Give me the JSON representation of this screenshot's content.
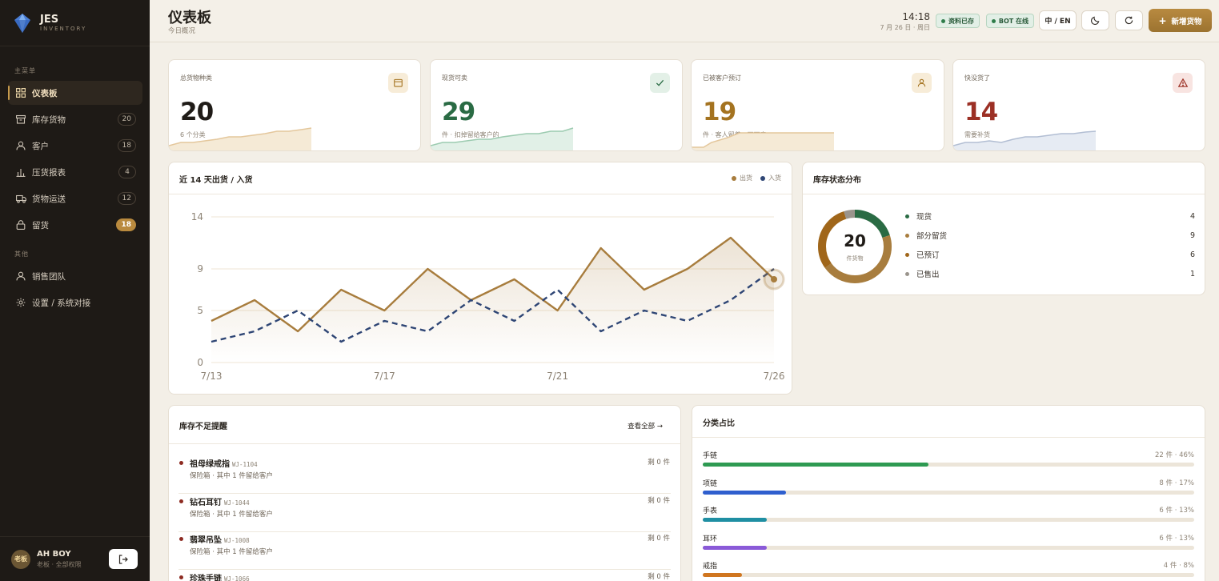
{
  "brand": {
    "name": "JES",
    "sub": "INVENTORY"
  },
  "sidebar": {
    "main_label": "主菜单",
    "other_label": "其他",
    "items": [
      {
        "label": "仪表板",
        "icon": "grid-icon",
        "badge": ""
      },
      {
        "label": "库存货物",
        "icon": "box-icon",
        "badge": "20"
      },
      {
        "label": "客户",
        "icon": "user-icon",
        "badge": "18"
      },
      {
        "label": "压货报表",
        "icon": "bar-chart-icon",
        "badge": "4"
      },
      {
        "label": "货物运送",
        "icon": "truck-icon",
        "badge": "12"
      },
      {
        "label": "留货",
        "icon": "lock-icon",
        "badge": "18"
      }
    ],
    "other_items": [
      {
        "label": "销售团队",
        "icon": "user-icon"
      },
      {
        "label": "设置 / 系统对接",
        "icon": "gear-icon"
      }
    ]
  },
  "user": {
    "avatar": "老板",
    "name": "AH BOY",
    "role": "老板 · 全部权限"
  },
  "header": {
    "title": "仪表板",
    "subtitle": "今日概况",
    "time": "14:18",
    "date": "7 月 26 日 · 周日",
    "status_saved": "资料已存",
    "status_bot": "BOT 在线",
    "lang": "中 / EN",
    "add_label": "新增货物"
  },
  "stats": [
    {
      "label": "总货物种类",
      "value": "20",
      "note": "6 个分类",
      "color": "#1f1b17",
      "icon": "box-icon",
      "icon_bg": "#f7ecd8",
      "spark": "#e4c79c"
    },
    {
      "label": "现货可卖",
      "value": "29",
      "note": "件 · 扣掉留给客户的",
      "color": "#2a6b44",
      "icon": "check-icon",
      "icon_bg": "#e3f0e7",
      "spark": "#9ccbb0"
    },
    {
      "label": "已被客户预订",
      "value": "19",
      "note": "件 · 客人留着，不可卖",
      "color": "#a47320",
      "icon": "user-icon",
      "icon_bg": "#f7ecd8",
      "spark": "#e4c79c"
    },
    {
      "label": "快没货了",
      "value": "14",
      "note": "需要补货",
      "color": "#9c3025",
      "icon": "warning-icon",
      "icon_bg": "#f8e4e1",
      "spark": "#b2bed3"
    }
  ],
  "flow_card": {
    "title": "近 14 天出货 / 入货",
    "legend_out": "出货",
    "legend_in": "入货"
  },
  "chart_data": {
    "type": "line",
    "title": "近 14 天出货 / 入货",
    "x": [
      "7/13",
      "7/14",
      "7/15",
      "7/16",
      "7/17",
      "7/18",
      "7/19",
      "7/20",
      "7/21",
      "7/22",
      "7/23",
      "7/24",
      "7/25",
      "7/26"
    ],
    "x_tick_labels": [
      "7/13",
      "7/17",
      "7/21",
      "7/26"
    ],
    "y_ticks": [
      0,
      5,
      9,
      14
    ],
    "ylim": [
      0,
      14
    ],
    "grid": true,
    "legend": "top-right",
    "series": [
      {
        "name": "出货",
        "color": "#a87d3e",
        "style": "solid",
        "values": [
          4,
          6,
          3,
          7,
          5,
          9,
          6,
          8,
          5,
          11,
          7,
          9,
          12,
          8
        ]
      },
      {
        "name": "入货",
        "color": "#2f4675",
        "style": "dashed",
        "values": [
          2,
          3,
          5,
          2,
          4,
          3,
          6,
          4,
          7,
          3,
          5,
          4,
          6,
          9
        ]
      }
    ]
  },
  "distribution": {
    "title": "库存状态分布",
    "total": "20",
    "unit": "件货物",
    "items": [
      {
        "label": "现货",
        "count": 4,
        "color": "#2a6b44"
      },
      {
        "label": "部分留货",
        "count": 9,
        "color": "#a87d3e"
      },
      {
        "label": "已预订",
        "count": 6,
        "color": "#a0661a"
      },
      {
        "label": "已售出",
        "count": 1,
        "color": "#9a948c"
      }
    ]
  },
  "low_stock": {
    "title": "库存不足提醒",
    "view_all": "查看全部 →",
    "items": [
      {
        "name": "祖母绿戒指",
        "code": "WJ-1104",
        "desc": "保险箱 · 其中 1 件留给客户",
        "remain": "剩 0 件"
      },
      {
        "name": "钻石耳钉",
        "code": "WJ-1044",
        "desc": "保险箱 · 其中 1 件留给客户",
        "remain": "剩 0 件"
      },
      {
        "name": "翡翠吊坠",
        "code": "WJ-1008",
        "desc": "保险箱 · 其中 1 件留给客户",
        "remain": "剩 0 件"
      },
      {
        "name": "珍珠手链",
        "code": "WJ-1066",
        "desc": "",
        "remain": "剩 0 件"
      }
    ]
  },
  "categories": {
    "title": "分类占比",
    "items": [
      {
        "name": "手链",
        "value": "22 件 · 46%",
        "percent": 46,
        "color": "#2e9a52"
      },
      {
        "name": "项链",
        "value": "8 件 · 17%",
        "percent": 17,
        "color": "#2f5fce"
      },
      {
        "name": "手表",
        "value": "6 件 · 13%",
        "percent": 13,
        "color": "#1f8fa3"
      },
      {
        "name": "耳环",
        "value": "6 件 · 13%",
        "percent": 13,
        "color": "#8a5ad8"
      },
      {
        "name": "戒指",
        "value": "4 件 · 8%",
        "percent": 8,
        "color": "#d0761f"
      }
    ]
  }
}
